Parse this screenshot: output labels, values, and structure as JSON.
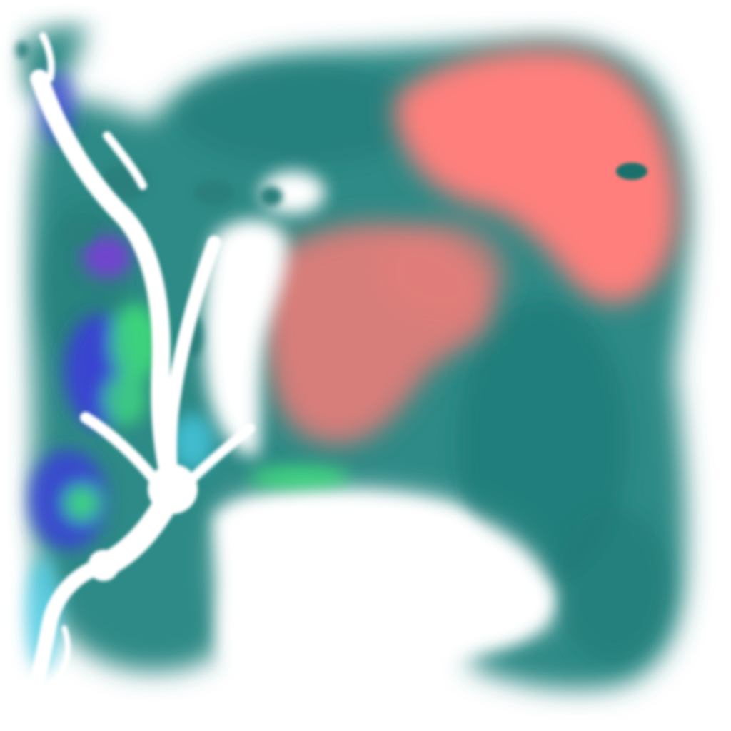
{
  "image": {
    "background_color": "#ffffff",
    "palette": {
      "teal": "#2e8a86",
      "teal_dark": "#1f7a76",
      "coral": "#ff7f7b",
      "blue": "#3b3fd8",
      "violet": "#7a3fd8",
      "green": "#3fe07a",
      "cyan": "#46c8e0",
      "white": "#ffffff"
    },
    "regions": [
      {
        "name": "teal-main-body",
        "color_key": "teal"
      },
      {
        "name": "coral-upper-right-region",
        "color_key": "coral"
      },
      {
        "name": "coral-center-region",
        "color_key": "coral"
      },
      {
        "name": "blue-green-left-band",
        "color_key": "blue"
      },
      {
        "name": "white-branching-streams",
        "color_key": "white"
      },
      {
        "name": "white-lower-void",
        "color_key": "white"
      }
    ]
  }
}
